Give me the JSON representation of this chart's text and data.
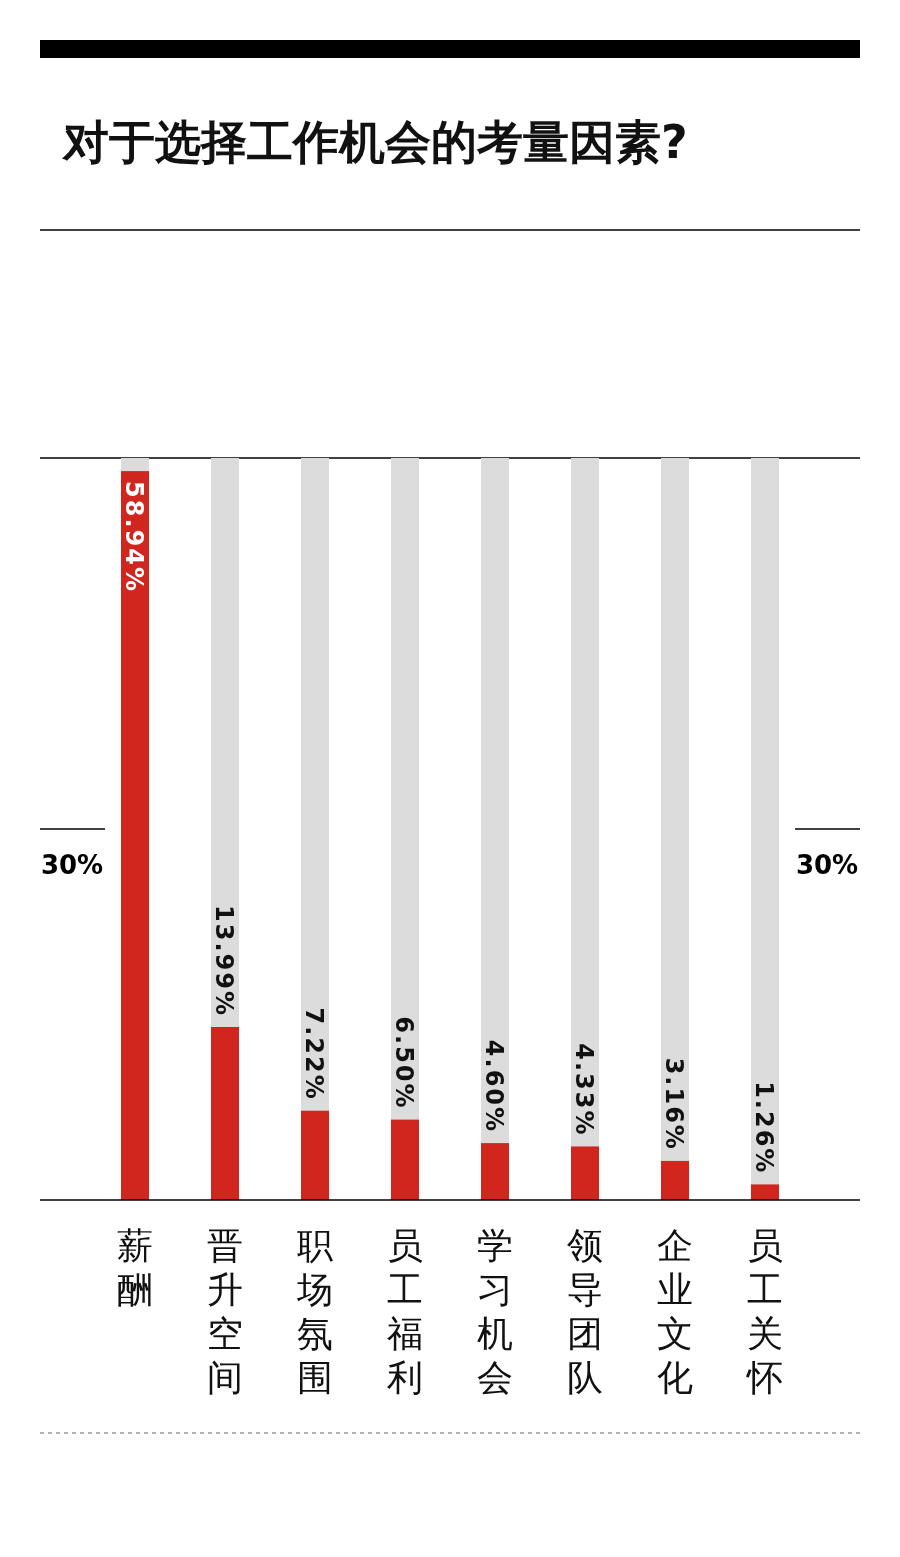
{
  "chart_data": {
    "type": "bar",
    "title": "对于选择工作机会的考量因素?",
    "categories": [
      "薪酬",
      "晋升空间",
      "职场氛围",
      "员工福利",
      "学习机会",
      "领导团队",
      "企业文化",
      "员工关怀"
    ],
    "values": [
      58.94,
      13.99,
      7.22,
      6.5,
      4.6,
      4.33,
      3.16,
      1.26
    ],
    "value_labels": [
      "58.94%",
      "13.99%",
      "7.22%",
      "6.50%",
      "4.60%",
      "4.33%",
      "3.16%",
      "1.26%"
    ],
    "color": "#d0261e",
    "ylim": [
      0,
      60
    ],
    "ref_lines": [
      {
        "axis": "y",
        "value": 30,
        "label": "30%"
      }
    ]
  }
}
